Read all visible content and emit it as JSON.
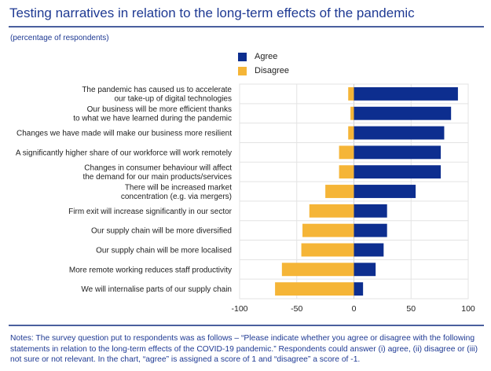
{
  "header": {
    "title": "Testing narratives in relation to the long-term effects of the pandemic",
    "subtitle": "(percentage of respondents)"
  },
  "colors": {
    "agree": "#0d2e8f",
    "disagree": "#f5b537",
    "title": "#1f3a93",
    "grid": "#e3e3e3"
  },
  "notes": "Notes: The survey question put to respondents was as follows – “Please indicate whether you agree or disagree with the following statements in relation to the long-term effects of the COVID-19 pandemic.” Respondents could answer (i) agree, (ii) disagree or (iii) not sure or not relevant. In the chart, “agree” is assigned a score of 1 and “disagree” a score of -1.",
  "chart_data": {
    "type": "bar",
    "orientation": "horizontal",
    "stacked": "diverging",
    "title": "Testing narratives in relation to the long-term effects of the pandemic",
    "subtitle": "(percentage of respondents)",
    "xlabel": "",
    "ylabel": "",
    "xlim": [
      -100,
      100
    ],
    "xticks": [
      -100,
      -50,
      0,
      50,
      100
    ],
    "xtick_labels": [
      "-100",
      "-50",
      "0",
      "50",
      "100"
    ],
    "grid": true,
    "legend_position": "top-center",
    "categories": [
      [
        "The pandemic has caused us to accelerate",
        "our take-up of digital technologies"
      ],
      [
        "Our business will be more efficient thanks",
        "to what we have learned during the pandemic"
      ],
      [
        "Changes we have made will make our business more resilient"
      ],
      [
        "A significantly higher share of our workforce will work remotely"
      ],
      [
        "Changes in consumer behaviour will affect",
        "the demand for our main products/services"
      ],
      [
        "There will be increased market",
        "concentration (e.g. via mergers)"
      ],
      [
        "Firm exit will increase significantly in our sector"
      ],
      [
        "Our supply chain will be more diversified"
      ],
      [
        "Our supply chain will be more localised"
      ],
      [
        "More remote working reduces staff productivity"
      ],
      [
        "We will internalise parts of our supply chain"
      ]
    ],
    "series": [
      {
        "name": "Agree",
        "color": "#0d2e8f",
        "values": [
          91,
          85,
          79,
          76,
          76,
          54,
          29,
          29,
          26,
          19,
          8
        ]
      },
      {
        "name": "Disagree",
        "color": "#f5b537",
        "values": [
          -5,
          -3,
          -5,
          -13,
          -13,
          -25,
          -39,
          -45,
          -46,
          -63,
          -69
        ]
      }
    ]
  }
}
